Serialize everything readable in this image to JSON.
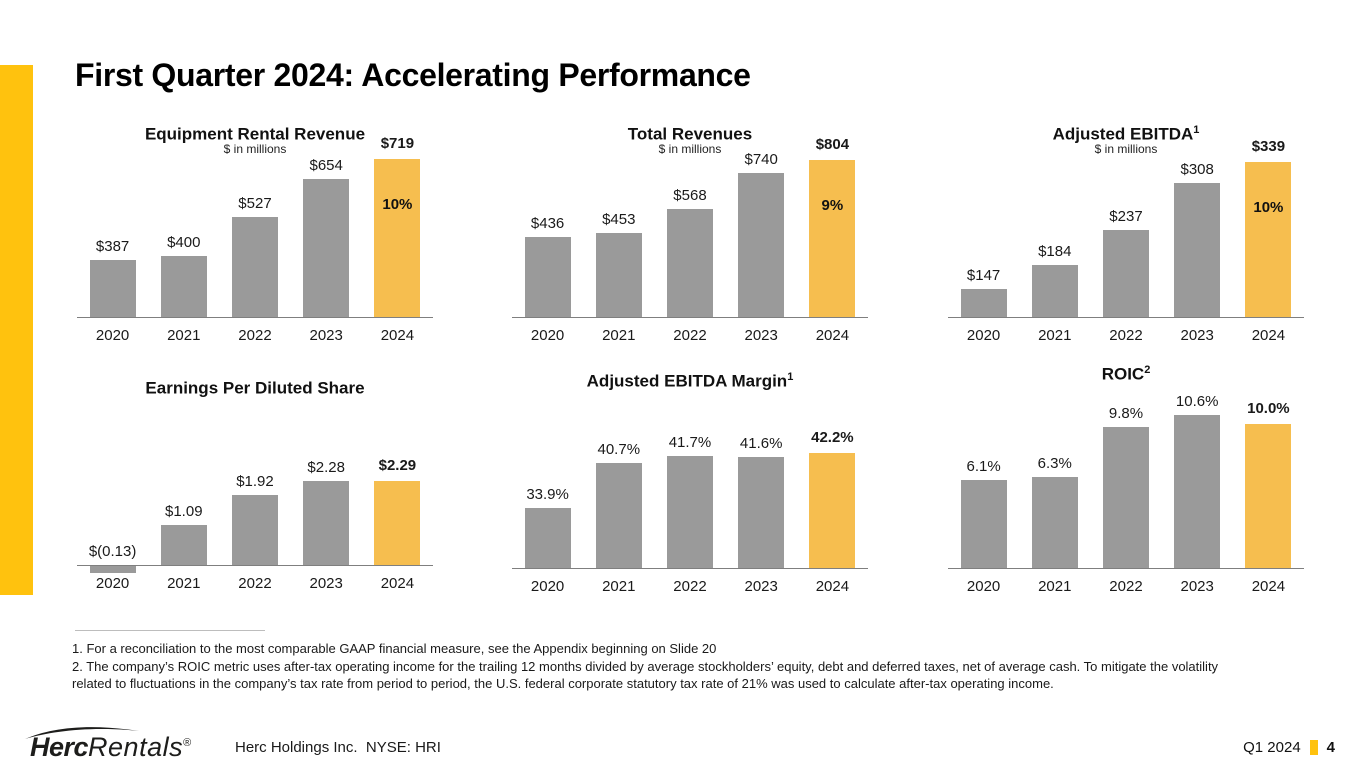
{
  "slide": {
    "title": "First Quarter 2024: Accelerating Performance",
    "footnotes": [
      "1. For a reconciliation to the most comparable GAAP financial measure, see the Appendix beginning on Slide 20",
      "2. The company’s ROIC metric uses after-tax operating income for the trailing 12 months divided by average stockholders’ equity, debt and deferred taxes, net of average cash. To mitigate the volatility",
      "related to fluctuations in the company’s tax rate from period to period, the U.S. federal corporate statutory tax rate of 21% was used to calculate after-tax operating income."
    ],
    "footer": {
      "logo_bold": "Herc",
      "logo_light": "Rentals",
      "logo_reg": "®",
      "company": "Herc Holdings Inc.  NYSE: HRI",
      "period": "Q1 2024",
      "page_number": "4"
    },
    "colors": {
      "accent_yellow": "#FFC20E",
      "highlight_bar_yellow": "#F6BE4F",
      "bar_gray": "#9A9A9A"
    }
  },
  "chart_data": [
    {
      "type": "bar",
      "title": "Equipment Rental Revenue",
      "title_superscript": "",
      "subtitle": "$ in millions",
      "categories": [
        "2020",
        "2021",
        "2022",
        "2023",
        "2024"
      ],
      "values": [
        387,
        400,
        527,
        654,
        719
      ],
      "value_labels": [
        "$387",
        "$400",
        "$527",
        "$654",
        "$719"
      ],
      "highlight_category": "2024",
      "growth_label": "10%",
      "ylim": [
        200,
        719
      ],
      "grid": false,
      "legend": false
    },
    {
      "type": "bar",
      "title": "Total Revenues",
      "title_superscript": "",
      "subtitle": "$ in millions",
      "categories": [
        "2020",
        "2021",
        "2022",
        "2023",
        "2024"
      ],
      "values": [
        436,
        453,
        568,
        740,
        804
      ],
      "value_labels": [
        "$436",
        "$453",
        "$568",
        "$740",
        "$804"
      ],
      "highlight_category": "2024",
      "growth_label": "9%",
      "ylim": [
        50,
        804
      ],
      "grid": false,
      "legend": false
    },
    {
      "type": "bar",
      "title": "Adjusted EBITDA",
      "title_superscript": "1",
      "subtitle": "$ in millions",
      "categories": [
        "2020",
        "2021",
        "2022",
        "2023",
        "2024"
      ],
      "values": [
        147,
        184,
        237,
        308,
        339
      ],
      "value_labels": [
        "$147",
        "$184",
        "$237",
        "$308",
        "$339"
      ],
      "highlight_category": "2024",
      "growth_label": "10%",
      "ylim": [
        105,
        339
      ],
      "grid": false,
      "legend": false
    },
    {
      "type": "bar",
      "title": "Earnings Per Diluted Share",
      "title_superscript": "",
      "subtitle": "",
      "categories": [
        "2020",
        "2021",
        "2022",
        "2023",
        "2024"
      ],
      "values": [
        -0.13,
        1.09,
        1.92,
        2.28,
        2.29
      ],
      "value_labels": [
        "$(0.13)",
        "$1.09",
        "$1.92",
        "$2.28",
        "$2.29"
      ],
      "highlight_category": "2024",
      "growth_label": "",
      "ylim": [
        0,
        2.29
      ],
      "grid": false,
      "legend": false
    },
    {
      "type": "bar",
      "title": "Adjusted EBITDA Margin",
      "title_superscript": "1",
      "subtitle": "",
      "categories": [
        "2020",
        "2021",
        "2022",
        "2023",
        "2024"
      ],
      "values": [
        33.9,
        40.7,
        41.7,
        41.6,
        42.2
      ],
      "value_labels": [
        "33.9%",
        "40.7%",
        "41.7%",
        "41.6%",
        "42.2%"
      ],
      "highlight_category": "2024",
      "growth_label": "",
      "ylim": [
        25,
        42.2
      ],
      "grid": false,
      "legend": false
    },
    {
      "type": "bar",
      "title": "ROIC",
      "title_superscript": "2",
      "subtitle": "",
      "categories": [
        "2020",
        "2021",
        "2022",
        "2023",
        "2024"
      ],
      "values": [
        6.1,
        6.3,
        9.8,
        10.6,
        10.0
      ],
      "value_labels": [
        "6.1%",
        "6.3%",
        "9.8%",
        "10.6%",
        "10.0%"
      ],
      "highlight_category": "2024",
      "growth_label": "",
      "ylim": [
        0,
        10.6
      ],
      "grid": false,
      "legend": false
    }
  ]
}
